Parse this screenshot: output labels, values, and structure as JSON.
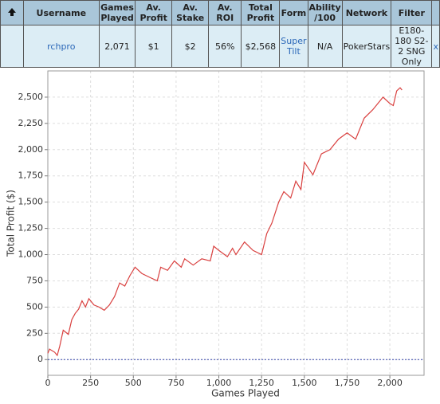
{
  "table": {
    "header": [
      "Username",
      "Games Played",
      "Av. Profit",
      "Av. Stake",
      "Av. ROI",
      "Total Profit",
      "Form",
      "Ability /100",
      "Network",
      "Filter"
    ],
    "row": [
      "rchpro",
      "2,071",
      "$1",
      "$2",
      "56%",
      "$2,568",
      "Super Tilt",
      "N/A",
      "PokerStars",
      "E180-180 S2-2 SNG Only",
      "x"
    ]
  },
  "chart_data": {
    "type": "line",
    "x_label": "Games Played",
    "y_label": "Total Profit ($)",
    "x": [
      0,
      10,
      40,
      55,
      70,
      90,
      120,
      140,
      160,
      180,
      200,
      220,
      240,
      270,
      300,
      330,
      360,
      390,
      420,
      450,
      480,
      510,
      550,
      600,
      640,
      660,
      700,
      740,
      780,
      800,
      850,
      900,
      950,
      970,
      1000,
      1050,
      1080,
      1100,
      1150,
      1200,
      1250,
      1280,
      1310,
      1350,
      1380,
      1420,
      1450,
      1480,
      1500,
      1550,
      1600,
      1650,
      1700,
      1750,
      1800,
      1850,
      1900,
      1960,
      2000,
      2020,
      2040,
      2060,
      2071
    ],
    "series": [
      {
        "name": "Total Profit",
        "color": "#d9403f",
        "values": [
          60,
          100,
          70,
          40,
          130,
          280,
          240,
          380,
          440,
          480,
          560,
          500,
          580,
          520,
          500,
          470,
          520,
          600,
          730,
          700,
          800,
          880,
          820,
          780,
          750,
          880,
          850,
          940,
          880,
          960,
          900,
          960,
          940,
          1080,
          1040,
          980,
          1060,
          1000,
          1120,
          1040,
          1000,
          1200,
          1300,
          1500,
          1600,
          1540,
          1700,
          1620,
          1880,
          1760,
          1960,
          2000,
          2100,
          2160,
          2100,
          2300,
          2380,
          2500,
          2440,
          2420,
          2560,
          2590,
          2568
        ]
      }
    ],
    "xlim": [
      0,
      2200
    ],
    "ylim": [
      -150,
      2750
    ],
    "xticks": [
      0,
      250,
      500,
      750,
      {
        "value": 1000,
        "label": "1,000"
      },
      {
        "value": 1250,
        "label": "1,250"
      },
      {
        "value": 1500,
        "label": "1,500"
      },
      {
        "value": 1750,
        "label": "1,750"
      },
      {
        "value": 2000,
        "label": "2,000"
      }
    ],
    "yticks": [
      0,
      250,
      500,
      750,
      {
        "value": 1000,
        "label": "1,000"
      },
      {
        "value": 1250,
        "label": "1,250"
      },
      {
        "value": 1500,
        "label": "1,500"
      },
      {
        "value": 1750,
        "label": "1,750"
      },
      {
        "value": 2000,
        "label": "2,000"
      },
      {
        "value": 2250,
        "label": "2,250"
      },
      {
        "value": 2500,
        "label": "2,500"
      }
    ],
    "grid": true
  }
}
